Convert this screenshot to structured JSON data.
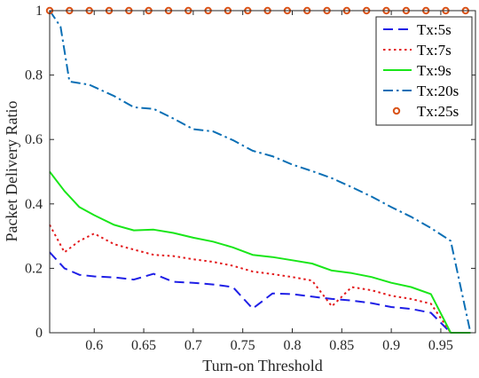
{
  "chart_data": {
    "type": "line",
    "title": "",
    "xlabel": "Turn-on Threshold",
    "ylabel": "Packet Delivery Ratio",
    "xlim": [
      0.555,
      0.985
    ],
    "ylim": [
      0,
      1
    ],
    "xticks": [
      0.6,
      0.65,
      0.7,
      0.75,
      0.8,
      0.85,
      0.9,
      0.95
    ],
    "xtick_labels": [
      "0.6",
      "0.65",
      "0.7",
      "0.75",
      "0.8",
      "0.85",
      "0.9",
      "0.95"
    ],
    "yticks": [
      0,
      0.2,
      0.4,
      0.6,
      0.8,
      1
    ],
    "ytick_labels": [
      "0",
      "0.2",
      "0.4",
      "0.6",
      "0.8",
      "1"
    ],
    "grid": false,
    "legend_position": "top-right",
    "series": [
      {
        "name": "Tx:5s",
        "color": "#1f1fe6",
        "dash": "11 6",
        "marker": "none",
        "x": [
          0.555,
          0.57,
          0.585,
          0.6,
          0.62,
          0.64,
          0.66,
          0.68,
          0.7,
          0.72,
          0.74,
          0.76,
          0.78,
          0.8,
          0.82,
          0.84,
          0.86,
          0.88,
          0.9,
          0.92,
          0.94,
          0.96,
          0.98
        ],
        "y": [
          0.25,
          0.2,
          0.18,
          0.175,
          0.172,
          0.165,
          0.183,
          0.158,
          0.155,
          0.15,
          0.142,
          0.075,
          0.122,
          0.12,
          0.112,
          0.105,
          0.1,
          0.092,
          0.08,
          0.074,
          0.062,
          0.0,
          0.0
        ]
      },
      {
        "name": "Tx:7s",
        "color": "#e31a1c",
        "dash": "2.5 3.5",
        "marker": "none",
        "x": [
          0.555,
          0.57,
          0.585,
          0.6,
          0.62,
          0.64,
          0.66,
          0.68,
          0.7,
          0.72,
          0.74,
          0.76,
          0.78,
          0.8,
          0.82,
          0.84,
          0.86,
          0.88,
          0.9,
          0.92,
          0.94,
          0.96,
          0.98
        ],
        "y": [
          0.335,
          0.25,
          0.285,
          0.308,
          0.275,
          0.258,
          0.242,
          0.238,
          0.228,
          0.22,
          0.208,
          0.19,
          0.182,
          0.173,
          0.162,
          0.082,
          0.142,
          0.132,
          0.115,
          0.105,
          0.09,
          0.0,
          0.0
        ]
      },
      {
        "name": "Tx:9s",
        "color": "#19e619",
        "dash": "",
        "marker": "none",
        "x": [
          0.555,
          0.57,
          0.585,
          0.6,
          0.62,
          0.64,
          0.66,
          0.68,
          0.7,
          0.72,
          0.74,
          0.76,
          0.78,
          0.8,
          0.82,
          0.84,
          0.86,
          0.88,
          0.9,
          0.92,
          0.94,
          0.96,
          0.98
        ],
        "y": [
          0.5,
          0.44,
          0.39,
          0.365,
          0.335,
          0.318,
          0.32,
          0.31,
          0.295,
          0.283,
          0.265,
          0.242,
          0.235,
          0.225,
          0.215,
          0.193,
          0.185,
          0.173,
          0.155,
          0.142,
          0.12,
          0.0,
          0.0
        ]
      },
      {
        "name": "Tx:20s",
        "color": "#0a6fb5",
        "dash": "11 4 2.5 4",
        "marker": "none",
        "x": [
          0.555,
          0.566,
          0.575,
          0.595,
          0.62,
          0.64,
          0.66,
          0.68,
          0.7,
          0.72,
          0.74,
          0.76,
          0.78,
          0.8,
          0.82,
          0.84,
          0.86,
          0.88,
          0.9,
          0.92,
          0.94,
          0.96,
          0.98
        ],
        "y": [
          1.0,
          0.95,
          0.78,
          0.77,
          0.735,
          0.7,
          0.695,
          0.665,
          0.632,
          0.625,
          0.598,
          0.565,
          0.548,
          0.522,
          0.502,
          0.48,
          0.452,
          0.423,
          0.39,
          0.36,
          0.325,
          0.285,
          0.0
        ]
      },
      {
        "name": "Tx:25s",
        "color": "#d95319",
        "dash": "",
        "marker": "circle",
        "x": [
          0.555,
          0.575,
          0.595,
          0.615,
          0.635,
          0.655,
          0.675,
          0.695,
          0.715,
          0.735,
          0.755,
          0.775,
          0.795,
          0.815,
          0.835,
          0.855,
          0.875,
          0.895,
          0.915,
          0.935,
          0.955,
          0.975
        ],
        "y": [
          1,
          1,
          1,
          1,
          1,
          1,
          1,
          1,
          1,
          1,
          1,
          1,
          1,
          1,
          1,
          1,
          1,
          1,
          1,
          1,
          1,
          1
        ]
      }
    ]
  }
}
